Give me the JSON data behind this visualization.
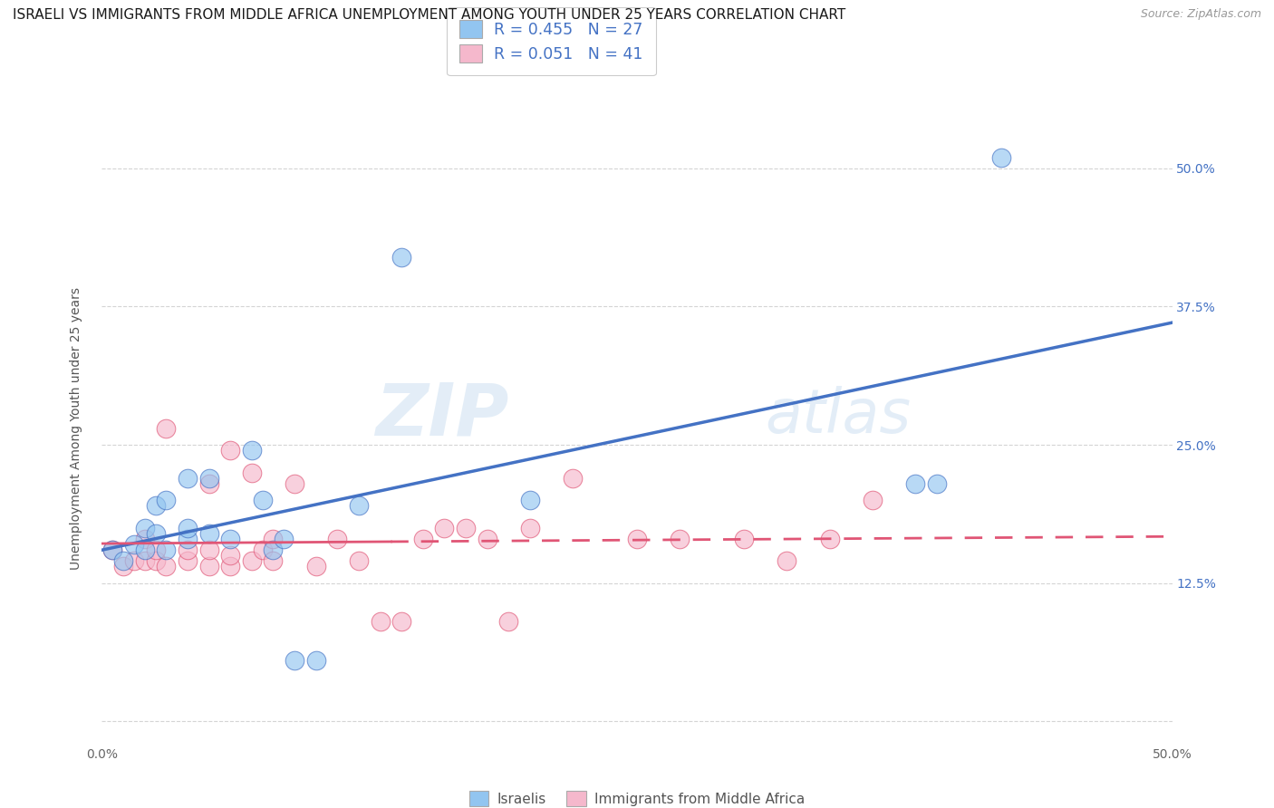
{
  "title": "ISRAELI VS IMMIGRANTS FROM MIDDLE AFRICA UNEMPLOYMENT AMONG YOUTH UNDER 25 YEARS CORRELATION CHART",
  "source": "Source: ZipAtlas.com",
  "ylabel": "Unemployment Among Youth under 25 years",
  "xlim": [
    0.0,
    0.5
  ],
  "ylim": [
    -0.02,
    0.55
  ],
  "ytick_labels_right": [
    "50.0%",
    "37.5%",
    "25.0%",
    "12.5%",
    ""
  ],
  "ytick_positions_right": [
    0.5,
    0.375,
    0.25,
    0.125,
    0.0
  ],
  "watermark": "ZIPatlas",
  "israelis_color": "#92c5f0",
  "immigrants_color": "#f5b8cc",
  "israelis_line_color": "#4472c4",
  "immigrants_line_color": "#e05575",
  "legend_color": "#4472c4",
  "R_israelis": 0.455,
  "N_israelis": 27,
  "R_immigrants": 0.051,
  "N_immigrants": 41,
  "israelis_x": [
    0.005,
    0.01,
    0.015,
    0.02,
    0.02,
    0.025,
    0.025,
    0.03,
    0.03,
    0.04,
    0.04,
    0.04,
    0.05,
    0.05,
    0.06,
    0.07,
    0.075,
    0.08,
    0.085,
    0.09,
    0.1,
    0.12,
    0.14,
    0.2,
    0.38,
    0.39,
    0.42
  ],
  "israelis_y": [
    0.155,
    0.145,
    0.16,
    0.155,
    0.175,
    0.17,
    0.195,
    0.155,
    0.2,
    0.165,
    0.175,
    0.22,
    0.17,
    0.22,
    0.165,
    0.245,
    0.2,
    0.155,
    0.165,
    0.055,
    0.055,
    0.195,
    0.42,
    0.2,
    0.215,
    0.215,
    0.51
  ],
  "immigrants_x": [
    0.005,
    0.01,
    0.015,
    0.02,
    0.02,
    0.025,
    0.025,
    0.03,
    0.03,
    0.04,
    0.04,
    0.05,
    0.05,
    0.05,
    0.06,
    0.06,
    0.06,
    0.07,
    0.07,
    0.075,
    0.08,
    0.08,
    0.09,
    0.1,
    0.11,
    0.12,
    0.13,
    0.14,
    0.15,
    0.16,
    0.17,
    0.18,
    0.19,
    0.2,
    0.22,
    0.25,
    0.27,
    0.3,
    0.32,
    0.34,
    0.36
  ],
  "immigrants_y": [
    0.155,
    0.14,
    0.145,
    0.145,
    0.165,
    0.145,
    0.155,
    0.14,
    0.265,
    0.145,
    0.155,
    0.14,
    0.155,
    0.215,
    0.14,
    0.15,
    0.245,
    0.145,
    0.225,
    0.155,
    0.145,
    0.165,
    0.215,
    0.14,
    0.165,
    0.145,
    0.09,
    0.09,
    0.165,
    0.175,
    0.175,
    0.165,
    0.09,
    0.175,
    0.22,
    0.165,
    0.165,
    0.165,
    0.145,
    0.165,
    0.2
  ],
  "background_color": "#ffffff",
  "grid_color": "#d0d0d0",
  "title_fontsize": 11,
  "axis_fontsize": 10,
  "tick_fontsize": 10
}
